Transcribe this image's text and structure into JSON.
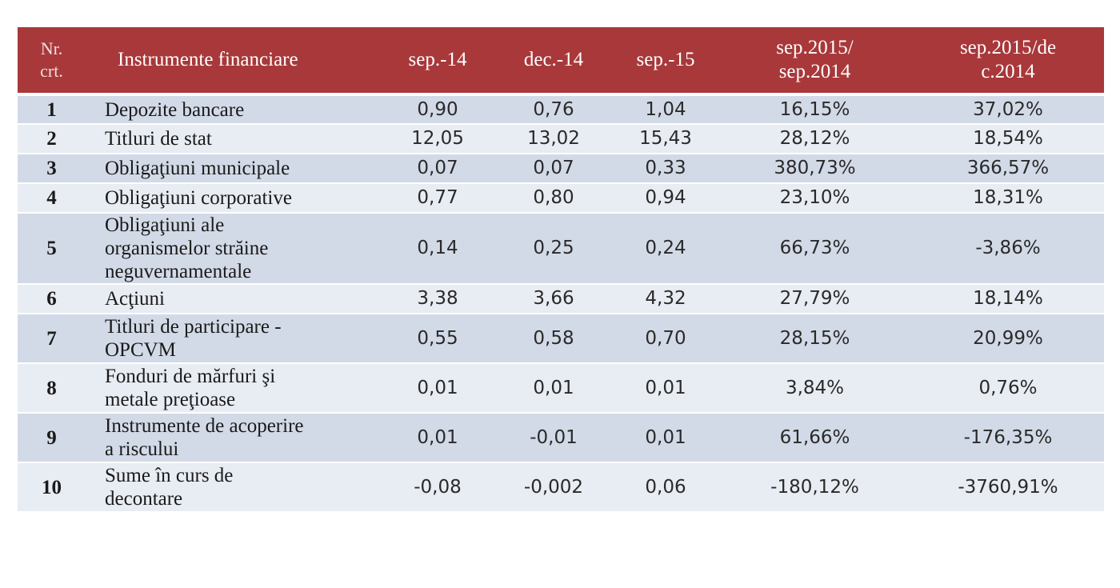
{
  "table": {
    "headers": {
      "nr": [
        "Nr.",
        "crt."
      ],
      "name": "Instrumente financiare",
      "v1": "sep.-14",
      "v2": "dec.-14",
      "v3": "sep.-15",
      "p1": [
        "sep.2015/",
        "sep.2014"
      ],
      "p2": [
        "sep.2015/de",
        "c.2014"
      ]
    },
    "rows": [
      {
        "nr": "1",
        "name": [
          "Depozite bancare"
        ],
        "v1": "0,90",
        "v2": "0,76",
        "v3": "1,04",
        "p1": "16,15%",
        "p2": "37,02%"
      },
      {
        "nr": "2",
        "name": [
          "Titluri de stat"
        ],
        "v1": "12,05",
        "v2": "13,02",
        "v3": "15,43",
        "p1": "28,12%",
        "p2": "18,54%"
      },
      {
        "nr": "3",
        "name": [
          "Obligaţiuni municipale"
        ],
        "v1": "0,07",
        "v2": "0,07",
        "v3": "0,33",
        "p1": "380,73%",
        "p2": "366,57%"
      },
      {
        "nr": "4",
        "name": [
          "Obligaţiuni corporative"
        ],
        "v1": "0,77",
        "v2": "0,80",
        "v3": "0,94",
        "p1": "23,10%",
        "p2": "18,31%"
      },
      {
        "nr": "5",
        "name": [
          "Obligaţiuni ale",
          "organismelor străine",
          "neguvernamentale"
        ],
        "v1": "0,14",
        "v2": "0,25",
        "v3": "0,24",
        "p1": "66,73%",
        "p2": "-3,86%"
      },
      {
        "nr": "6",
        "name": [
          "Acţiuni"
        ],
        "v1": "3,38",
        "v2": "3,66",
        "v3": "4,32",
        "p1": "27,79%",
        "p2": "18,14%"
      },
      {
        "nr": "7",
        "name": [
          "Titluri de participare -",
          "OPCVM"
        ],
        "v1": "0,55",
        "v2": "0,58",
        "v3": "0,70",
        "p1": "28,15%",
        "p2": "20,99%"
      },
      {
        "nr": "8",
        "name": [
          "Fonduri de mărfuri şi",
          "metale preţioase"
        ],
        "v1": "0,01",
        "v2": "0,01",
        "v3": "0,01",
        "p1": "3,84%",
        "p2": "0,76%"
      },
      {
        "nr": "9",
        "name": [
          "Instrumente de acoperire",
          "a riscului"
        ],
        "v1": "0,01",
        "v2": "-0,01",
        "v3": "0,01",
        "p1": "61,66%",
        "p2": "-176,35%"
      },
      {
        "nr": "10",
        "name": [
          "Sume în curs de",
          "decontare"
        ],
        "v1": "-0,08",
        "v2": "-0,002",
        "v3": "0,06",
        "p1": "-180,12%",
        "p2": "-3760,91%"
      }
    ]
  },
  "colors": {
    "header_bg": "#a8383a",
    "row_odd": "#d3dae7",
    "row_even": "#e8ecf3"
  }
}
